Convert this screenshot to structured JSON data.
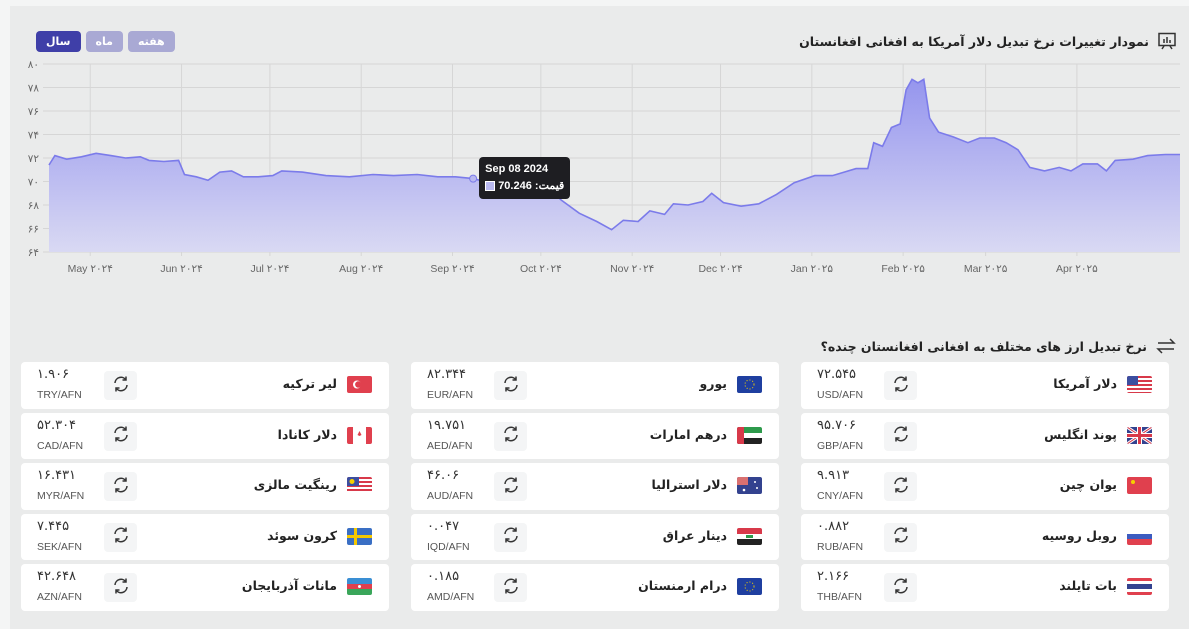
{
  "chart_section": {
    "title": "نمودار تغییرات نرخ تبدیل دلار آمریکا به افغانی افغانستان",
    "periods": [
      {
        "label": "سال",
        "active": true
      },
      {
        "label": "ماه",
        "active": false
      },
      {
        "label": "هفته",
        "active": false
      }
    ],
    "tooltip": {
      "date": "Sep 08 2024",
      "label": "قیمت:",
      "value": "70.246"
    }
  },
  "chart_data": {
    "type": "area",
    "color": "#7b7bea",
    "ylim": [
      64,
      80
    ],
    "y_ticks": [
      {
        "v": 80,
        "label": "۸۰"
      },
      {
        "v": 78,
        "label": "۷۸"
      },
      {
        "v": 76,
        "label": "۷۶"
      },
      {
        "v": 74,
        "label": "۷۴"
      },
      {
        "v": 72,
        "label": "۷۲"
      },
      {
        "v": 70,
        "label": "۷۰"
      },
      {
        "v": 68,
        "label": "۶۸"
      },
      {
        "v": 66,
        "label": "۶۶"
      },
      {
        "v": 64,
        "label": "۶۴"
      }
    ],
    "x_ticks": [
      {
        "date": "2024-05-01",
        "label": "May ۲۰۲۴"
      },
      {
        "date": "2024-06-01",
        "label": "Jun ۲۰۲۴"
      },
      {
        "date": "2024-07-01",
        "label": "Jul ۲۰۲۴"
      },
      {
        "date": "2024-08-01",
        "label": "Aug ۲۰۲۴"
      },
      {
        "date": "2024-09-01",
        "label": "Sep ۲۰۲۴"
      },
      {
        "date": "2024-10-01",
        "label": "Oct ۲۰۲۴"
      },
      {
        "date": "2024-11-01",
        "label": "Nov ۲۰۲۴"
      },
      {
        "date": "2024-12-01",
        "label": "Dec ۲۰۲۴"
      },
      {
        "date": "2025-01-01",
        "label": "Jan ۲۰۲۵"
      },
      {
        "date": "2025-02-01",
        "label": "Feb ۲۰۲۵"
      },
      {
        "date": "2025-03-01",
        "label": "Mar ۲۰۲۵"
      },
      {
        "date": "2025-04-01",
        "label": "Apr ۲۰۲۵"
      }
    ],
    "grid": true,
    "points": [
      [
        "2024-04-17",
        71.4
      ],
      [
        "2024-04-19",
        72.2
      ],
      [
        "2024-04-23",
        71.9
      ],
      [
        "2024-04-28",
        72.1
      ],
      [
        "2024-05-03",
        72.4
      ],
      [
        "2024-05-08",
        72.2
      ],
      [
        "2024-05-13",
        72.0
      ],
      [
        "2024-05-18",
        72.1
      ],
      [
        "2024-05-21",
        71.8
      ],
      [
        "2024-05-26",
        71.7
      ],
      [
        "2024-05-31",
        71.8
      ],
      [
        "2024-06-02",
        70.6
      ],
      [
        "2024-06-06",
        70.4
      ],
      [
        "2024-06-10",
        70.1
      ],
      [
        "2024-06-14",
        70.8
      ],
      [
        "2024-06-18",
        70.9
      ],
      [
        "2024-06-22",
        70.4
      ],
      [
        "2024-06-27",
        70.4
      ],
      [
        "2024-07-02",
        70.5
      ],
      [
        "2024-07-05",
        70.9
      ],
      [
        "2024-07-12",
        70.8
      ],
      [
        "2024-07-20",
        70.5
      ],
      [
        "2024-07-28",
        70.4
      ],
      [
        "2024-08-05",
        70.6
      ],
      [
        "2024-08-12",
        70.5
      ],
      [
        "2024-08-20",
        70.6
      ],
      [
        "2024-08-27",
        70.4
      ],
      [
        "2024-09-02",
        70.4
      ],
      [
        "2024-09-08",
        70.246
      ],
      [
        "2024-09-15",
        69.8
      ],
      [
        "2024-09-22",
        69.3
      ],
      [
        "2024-09-30",
        69.3
      ],
      [
        "2024-10-04",
        69.3
      ],
      [
        "2024-10-08",
        68.4
      ],
      [
        "2024-10-14",
        67.3
      ],
      [
        "2024-10-20",
        66.6
      ],
      [
        "2024-10-25",
        65.9
      ],
      [
        "2024-10-29",
        66.7
      ],
      [
        "2024-11-03",
        66.6
      ],
      [
        "2024-11-07",
        67.5
      ],
      [
        "2024-11-12",
        67.2
      ],
      [
        "2024-11-15",
        68.1
      ],
      [
        "2024-11-20",
        68.0
      ],
      [
        "2024-11-25",
        68.3
      ],
      [
        "2024-11-28",
        69.0
      ],
      [
        "2024-12-02",
        68.2
      ],
      [
        "2024-12-08",
        67.9
      ],
      [
        "2024-12-14",
        68.1
      ],
      [
        "2024-12-20",
        68.9
      ],
      [
        "2024-12-26",
        69.9
      ],
      [
        "2025-01-02",
        70.5
      ],
      [
        "2025-01-08",
        70.5
      ],
      [
        "2025-01-12",
        70.8
      ],
      [
        "2025-01-16",
        71.1
      ],
      [
        "2025-01-20",
        71.1
      ],
      [
        "2025-01-22",
        73.3
      ],
      [
        "2025-01-25",
        73.0
      ],
      [
        "2025-01-28",
        74.6
      ],
      [
        "2025-01-31",
        74.9
      ],
      [
        "2025-02-02",
        77.8
      ],
      [
        "2025-02-04",
        78.7
      ],
      [
        "2025-02-06",
        78.4
      ],
      [
        "2025-02-08",
        78.7
      ],
      [
        "2025-02-10",
        75.4
      ],
      [
        "2025-02-13",
        74.2
      ],
      [
        "2025-02-18",
        73.8
      ],
      [
        "2025-02-23",
        73.3
      ],
      [
        "2025-02-27",
        73.7
      ],
      [
        "2025-03-04",
        73.7
      ],
      [
        "2025-03-08",
        73.3
      ],
      [
        "2025-03-12",
        72.7
      ],
      [
        "2025-03-16",
        71.2
      ],
      [
        "2025-03-21",
        70.9
      ],
      [
        "2025-03-26",
        71.2
      ],
      [
        "2025-03-30",
        70.9
      ],
      [
        "2025-04-03",
        71.5
      ],
      [
        "2025-04-08",
        71.5
      ],
      [
        "2025-04-11",
        70.9
      ],
      [
        "2025-04-14",
        71.8
      ],
      [
        "2025-04-20",
        71.9
      ],
      [
        "2025-04-25",
        72.2
      ],
      [
        "2025-05-01",
        72.3
      ],
      [
        "2025-05-06",
        72.3
      ]
    ]
  },
  "rates_section": {
    "title": "نرخ تبدیل ارز های مختلف به افغانی افغانستان چنده؟",
    "cards": [
      {
        "name": "دلار آمریکا",
        "value": "۷۲.۵۴۵",
        "pair": "USD/AFN",
        "flag": "us"
      },
      {
        "name": "یورو",
        "value": "۸۲.۳۴۴",
        "pair": "EUR/AFN",
        "flag": "eu"
      },
      {
        "name": "لیر ترکیه",
        "value": "۱.۹۰۶",
        "pair": "TRY/AFN",
        "flag": "tr"
      },
      {
        "name": "پوند انگلیس",
        "value": "۹۵.۷۰۶",
        "pair": "GBP/AFN",
        "flag": "gb"
      },
      {
        "name": "درهم امارات",
        "value": "۱۹.۷۵۱",
        "pair": "AED/AFN",
        "flag": "ae"
      },
      {
        "name": "دلار کانادا",
        "value": "۵۲.۳۰۴",
        "pair": "CAD/AFN",
        "flag": "ca"
      },
      {
        "name": "یوان چین",
        "value": "۹.۹۱۳",
        "pair": "CNY/AFN",
        "flag": "cn"
      },
      {
        "name": "دلار استرالیا",
        "value": "۴۶.۰۶",
        "pair": "AUD/AFN",
        "flag": "au"
      },
      {
        "name": "رینگیت مالزی",
        "value": "۱۶.۴۳۱",
        "pair": "MYR/AFN",
        "flag": "my"
      },
      {
        "name": "روبل روسیه",
        "value": "۰.۸۸۲",
        "pair": "RUB/AFN",
        "flag": "ru"
      },
      {
        "name": "دینار عراق",
        "value": "۰.۰۴۷",
        "pair": "IQD/AFN",
        "flag": "iq"
      },
      {
        "name": "کرون سوئد",
        "value": "۷.۴۴۵",
        "pair": "SEK/AFN",
        "flag": "se"
      },
      {
        "name": "بات تایلند",
        "value": "۲.۱۶۶",
        "pair": "THB/AFN",
        "flag": "th"
      },
      {
        "name": "درام ارمنستان",
        "value": "۰.۱۸۵",
        "pair": "AMD/AFN",
        "flag": "eu"
      },
      {
        "name": "مانات آذربایجان",
        "value": "۴۲.۶۴۸",
        "pair": "AZN/AFN",
        "flag": "az"
      }
    ]
  }
}
